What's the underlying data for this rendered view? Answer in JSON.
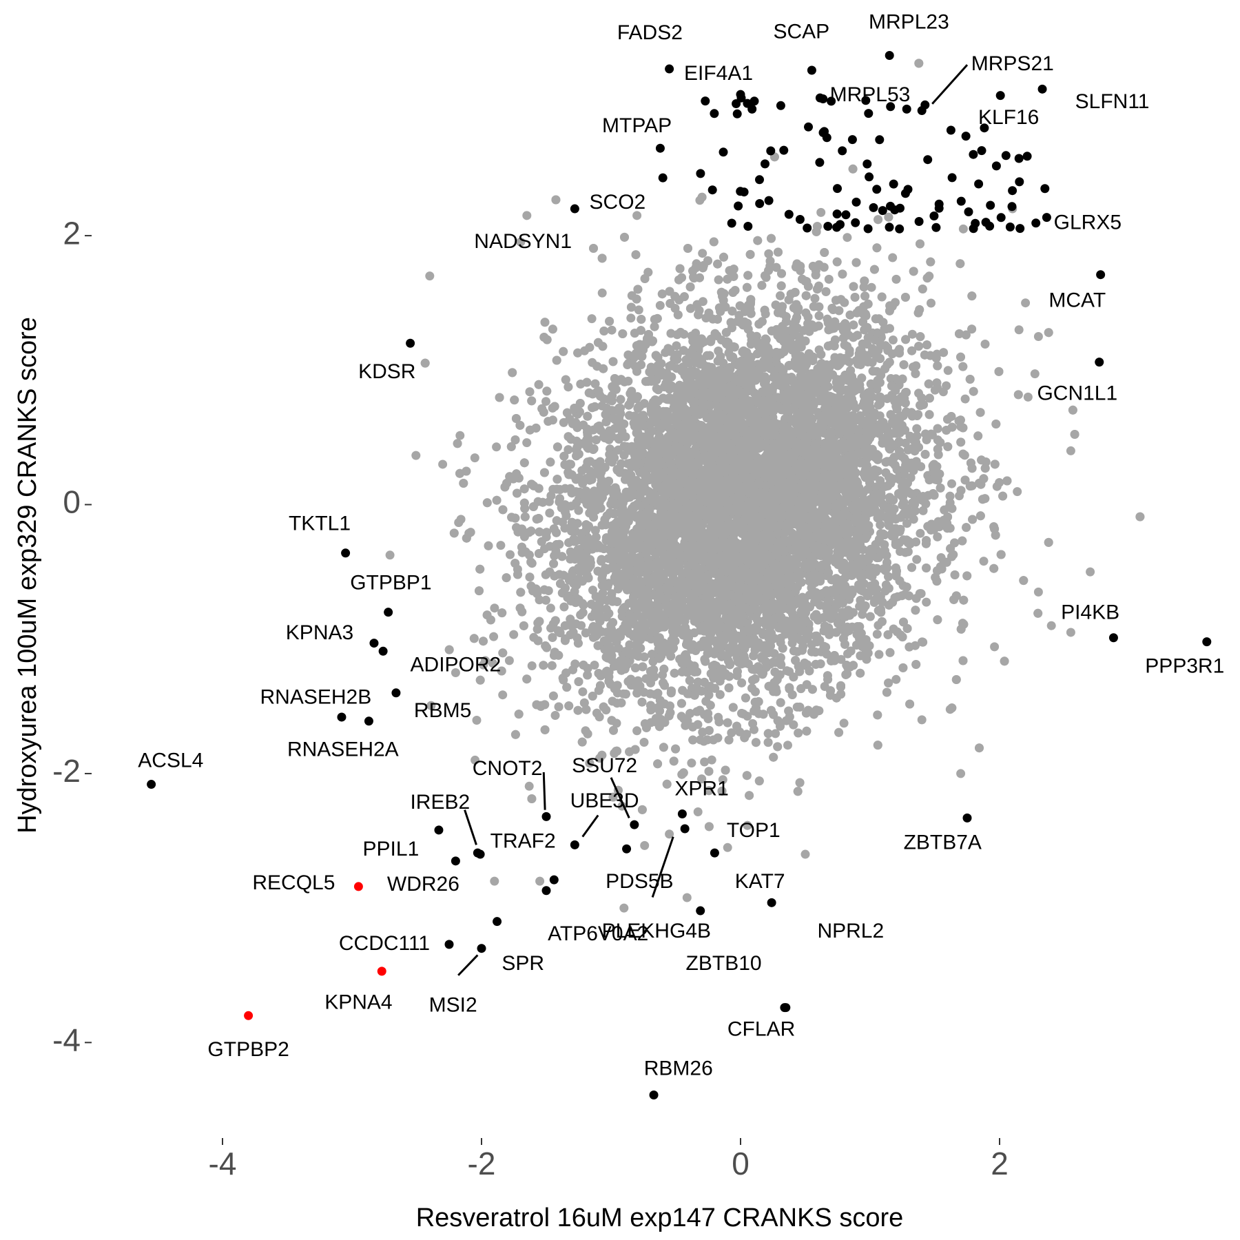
{
  "chart_data": {
    "type": "scatter",
    "title": "",
    "xlabel": "Resveratrol 16uM exp147 CRANKS score",
    "ylabel": "Hydroxyurea 100uM exp329 CRANKS score",
    "xlim": [
      -5.0,
      3.75
    ],
    "ylim": [
      -4.7,
      3.65
    ],
    "x_ticks": [
      -4,
      -2,
      0,
      2
    ],
    "y_ticks": [
      -4,
      -2,
      0,
      2
    ],
    "grid": false,
    "legend": "none",
    "colors": {
      "background_points": "#a6a6a6",
      "highlight_points": "#000000",
      "flagged_points": "#ff0000",
      "label_text": "#000000",
      "axis_text": "#4d4d4d"
    },
    "background_cloud": {
      "description_count": 12000,
      "center": [
        0.0,
        0.0
      ],
      "sd": [
        0.72,
        0.72
      ],
      "correlation": 0.18
    },
    "background_outliers": [
      [
        -2.4,
        1.7
      ],
      [
        -1.65,
        2.15
      ],
      [
        -2.3,
        0.3
      ],
      [
        -2.05,
        -1.9
      ],
      [
        -2.2,
        -1.25
      ],
      [
        -0.8,
        2.15
      ],
      [
        2.1,
        2.2
      ],
      [
        1.72,
        2.05
      ],
      [
        2.2,
        1.5
      ],
      [
        2.15,
        1.3
      ],
      [
        2.3,
        1.25
      ],
      [
        2.22,
        0.8
      ],
      [
        2.55,
        0.4
      ],
      [
        2.7,
        -0.5
      ],
      [
        2.55,
        -0.95
      ],
      [
        2.3,
        -0.65
      ],
      [
        1.7,
        -2.0
      ],
      [
        -0.1,
        -2.55
      ],
      [
        -0.9,
        -3.0
      ],
      [
        -1.9,
        -2.8
      ],
      [
        -0.55,
        -2.45
      ],
      [
        0.5,
        -2.6
      ],
      [
        2.4,
        -0.9
      ],
      [
        1.4,
        -1.6
      ],
      [
        -1.55,
        -2.8
      ]
    ],
    "points": [
      {
        "label": "FADS2",
        "x": -0.55,
        "y": 3.24,
        "color": "highlight",
        "lx": -0.7,
        "ly": 3.5
      },
      {
        "label": "EIF4A1",
        "x": 0.0,
        "y": 3.05,
        "color": "highlight",
        "lx": -0.17,
        "ly": 3.2
      },
      {
        "label": "SCAP",
        "x": 0.55,
        "y": 3.23,
        "color": "highlight",
        "lx": 0.47,
        "ly": 3.51
      },
      {
        "label": "MRPL23",
        "x": 1.15,
        "y": 3.34,
        "color": "highlight",
        "lx": 1.3,
        "ly": 3.58
      },
      {
        "label": "MRPS21",
        "x": 1.4,
        "y": 2.93,
        "color": "highlight",
        "lx": 2.1,
        "ly": 3.27,
        "leader": [
          1.48,
          2.98,
          1.75,
          3.27
        ]
      },
      {
        "label": "MRPL53",
        "x": 0.7,
        "y": 3.0,
        "color": "highlight",
        "lx": 1.0,
        "ly": 3.04
      },
      {
        "label": "SLFN11",
        "x": 2.33,
        "y": 3.09,
        "color": "highlight",
        "lx": 2.87,
        "ly": 2.99
      },
      {
        "label": "KLF16",
        "x": 1.74,
        "y": 2.74,
        "color": "highlight",
        "lx": 2.07,
        "ly": 2.87
      },
      {
        "label": "MTPAP",
        "x": -0.62,
        "y": 2.65,
        "color": "highlight",
        "lx": -0.8,
        "ly": 2.81
      },
      {
        "label": "SCO2",
        "x": -0.6,
        "y": 2.43,
        "color": "highlight",
        "lx": -0.95,
        "ly": 2.24
      },
      {
        "label": "NADSYN1",
        "x": -1.28,
        "y": 2.2,
        "color": "highlight",
        "lx": -1.68,
        "ly": 1.95
      },
      {
        "label": "GLRX5",
        "x": 2.35,
        "y": 2.35,
        "color": "highlight",
        "lx": 2.68,
        "ly": 2.09
      },
      {
        "label": "MCAT",
        "x": 2.78,
        "y": 1.71,
        "color": "highlight",
        "lx": 2.6,
        "ly": 1.51
      },
      {
        "label": "GCN1L1",
        "x": 2.77,
        "y": 1.06,
        "color": "highlight",
        "lx": 2.6,
        "ly": 0.82
      },
      {
        "label": "KDSR",
        "x": -2.55,
        "y": 1.2,
        "color": "highlight",
        "lx": -2.73,
        "ly": 0.98
      },
      {
        "label": "TKTL1",
        "x": -3.05,
        "y": -0.36,
        "color": "highlight",
        "lx": -3.25,
        "ly": -0.15
      },
      {
        "label": "GTPBP1",
        "x": -2.72,
        "y": -0.8,
        "color": "highlight",
        "lx": -2.7,
        "ly": -0.59
      },
      {
        "label": "KPNA3",
        "x": -2.83,
        "y": -1.03,
        "color": "highlight",
        "lx": -3.25,
        "ly": -0.96
      },
      {
        "label": "ADIPOR2",
        "x": -2.76,
        "y": -1.09,
        "color": "highlight",
        "lx": -2.2,
        "ly": -1.2
      },
      {
        "label": "RNASEH2B",
        "x": -3.08,
        "y": -1.58,
        "color": "highlight",
        "lx": -3.28,
        "ly": -1.44
      },
      {
        "label": "RBM5",
        "x": -2.66,
        "y": -1.4,
        "color": "highlight",
        "lx": -2.3,
        "ly": -1.54
      },
      {
        "label": "RNASEH2A",
        "x": -2.87,
        "y": -1.61,
        "color": "highlight",
        "lx": -3.07,
        "ly": -1.83
      },
      {
        "label": "PI4KB",
        "x": 2.88,
        "y": -0.99,
        "color": "highlight",
        "lx": 2.7,
        "ly": -0.81
      },
      {
        "label": "PPP3R1",
        "x": 3.6,
        "y": -1.02,
        "color": "highlight",
        "lx": 3.43,
        "ly": -1.21
      },
      {
        "label": "ACSL4",
        "x": -4.55,
        "y": -2.08,
        "color": "highlight",
        "lx": -4.4,
        "ly": -1.91
      },
      {
        "label": "CNOT2",
        "x": -1.5,
        "y": -2.32,
        "color": "highlight",
        "lx": -1.8,
        "ly": -1.97,
        "leader": [
          -1.51,
          -2.27,
          -1.52,
          -1.99
        ]
      },
      {
        "label": "SSU72",
        "x": -0.82,
        "y": -2.38,
        "color": "highlight",
        "lx": -1.05,
        "ly": -1.95,
        "leader": [
          -0.86,
          -2.33,
          -1.0,
          -2.03
        ]
      },
      {
        "label": "XPR1",
        "x": -0.45,
        "y": -2.3,
        "color": "highlight",
        "lx": -0.3,
        "ly": -2.12
      },
      {
        "label": "UBE3D",
        "x": -1.28,
        "y": -2.53,
        "color": "highlight",
        "lx": -1.05,
        "ly": -2.21,
        "leader": [
          -1.22,
          -2.47,
          -1.1,
          -2.31
        ]
      },
      {
        "label": "IREB2",
        "x": -2.03,
        "y": -2.59,
        "color": "highlight",
        "lx": -2.32,
        "ly": -2.22,
        "leader": [
          -2.04,
          -2.53,
          -2.13,
          -2.27
        ]
      },
      {
        "label": "TRAF2",
        "x": -2.01,
        "y": -2.6,
        "color": "highlight",
        "lx": -1.68,
        "ly": -2.51
      },
      {
        "label": "PPIL1",
        "x": -2.33,
        "y": -2.42,
        "color": "highlight",
        "lx": -2.7,
        "ly": -2.57
      },
      {
        "label": "TOP1",
        "x": -0.2,
        "y": -2.59,
        "color": "highlight",
        "lx": 0.1,
        "ly": -2.43
      },
      {
        "label": "PDS5B",
        "x": -0.88,
        "y": -2.56,
        "color": "highlight",
        "lx": -0.78,
        "ly": -2.81
      },
      {
        "label": "KAT7",
        "x": 0.24,
        "y": -2.96,
        "color": "highlight",
        "lx": 0.15,
        "ly": -2.81
      },
      {
        "label": "RECQL5",
        "x": -2.95,
        "y": -2.84,
        "color": "flagged",
        "lx": -3.45,
        "ly": -2.82
      },
      {
        "label": "WDR26",
        "x": -2.2,
        "y": -2.65,
        "color": "highlight",
        "lx": -2.45,
        "ly": -2.83
      },
      {
        "label": "ATP6V0A2",
        "x": -1.44,
        "y": -2.79,
        "color": "highlight",
        "lx": -1.1,
        "ly": -3.2
      },
      {
        "label": "PLEKHG4B",
        "x": -0.31,
        "y": -3.02,
        "color": "highlight",
        "lx": -0.65,
        "ly": -3.18
      },
      {
        "label": "",
        "x": -1.5,
        "y": -2.87,
        "color": "highlight"
      },
      {
        "label": "NPRL2",
        "x": 0.35,
        "y": -3.74,
        "color": "highlight",
        "lx": 0.85,
        "ly": -3.18
      },
      {
        "label": "CCDC111",
        "x": -1.88,
        "y": -3.1,
        "color": "highlight",
        "lx": -2.75,
        "ly": -3.27
      },
      {
        "label": "SPR",
        "x": -2.0,
        "y": -3.3,
        "color": "highlight",
        "lx": -1.68,
        "ly": -3.42,
        "leader": [
          -2.03,
          -3.35,
          -2.18,
          -3.5
        ]
      },
      {
        "label": "MSI2",
        "x": -2.25,
        "y": -3.27,
        "color": "highlight",
        "lx": -2.22,
        "ly": -3.73
      },
      {
        "label": "ZBTB10",
        "x": -0.43,
        "y": -2.41,
        "color": "highlight",
        "lx": -0.13,
        "ly": -3.42,
        "leader": [
          -0.52,
          -2.47,
          -0.68,
          -2.92
        ]
      },
      {
        "label": "KPNA4",
        "x": -2.77,
        "y": -3.47,
        "color": "flagged",
        "lx": -2.95,
        "ly": -3.71
      },
      {
        "label": "CFLAR",
        "x": 0.34,
        "y": -3.74,
        "color": "highlight",
        "lx": 0.16,
        "ly": -3.91
      },
      {
        "label": "GTPBP2",
        "x": -3.8,
        "y": -3.8,
        "color": "flagged",
        "lx": -3.8,
        "ly": -4.06
      },
      {
        "label": "RBM26",
        "x": -0.67,
        "y": -4.39,
        "color": "highlight",
        "lx": -0.48,
        "ly": -4.2
      },
      {
        "label": "ZBTB7A",
        "x": 1.75,
        "y": -2.33,
        "color": "highlight",
        "lx": 1.56,
        "ly": -2.52
      }
    ],
    "top_cluster": {
      "x_range": [
        -0.35,
        2.4
      ],
      "y_range": [
        2.05,
        3.05
      ],
      "count": 95
    }
  }
}
